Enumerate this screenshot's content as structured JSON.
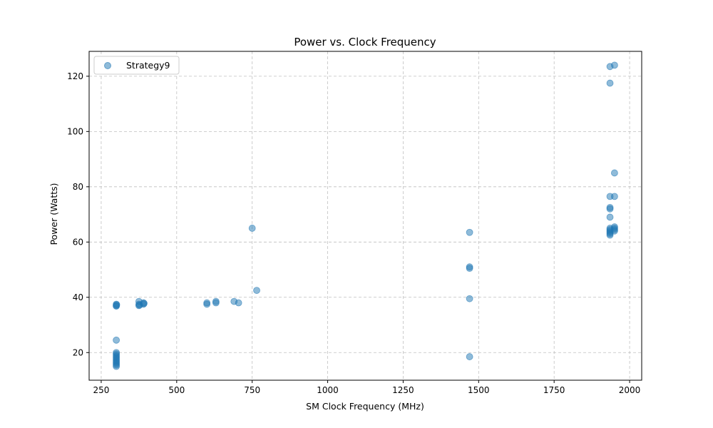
{
  "chart_data": {
    "type": "scatter",
    "title": "Power vs. Clock Frequency",
    "xlabel": "SM Clock Frequency (MHz)",
    "ylabel": "Power (Watts)",
    "xlim": [
      210,
      2040
    ],
    "ylim": [
      10,
      129
    ],
    "xticks": [
      250,
      500,
      750,
      1000,
      1250,
      1500,
      1750,
      2000
    ],
    "yticks": [
      20,
      40,
      60,
      80,
      100,
      120
    ],
    "grid": true,
    "legend_position": "top-left",
    "color": "#1f77b4",
    "series": [
      {
        "name": "Strategy9",
        "points": [
          [
            300,
            37.5
          ],
          [
            300,
            37.0
          ],
          [
            300,
            36.8
          ],
          [
            301,
            37.3
          ],
          [
            300,
            24.5
          ],
          [
            300,
            20.0
          ],
          [
            300,
            19.5
          ],
          [
            300,
            19.0
          ],
          [
            300,
            18.5
          ],
          [
            300,
            18.0
          ],
          [
            300,
            17.5
          ],
          [
            300,
            17.0
          ],
          [
            300,
            16.5
          ],
          [
            300,
            16.0
          ],
          [
            300,
            15.5
          ],
          [
            300,
            15.0
          ],
          [
            375,
            38.5
          ],
          [
            375,
            37.5
          ],
          [
            375,
            37.0
          ],
          [
            377,
            37.2
          ],
          [
            390,
            38.0
          ],
          [
            390,
            37.5
          ],
          [
            392,
            37.8
          ],
          [
            600,
            38.0
          ],
          [
            600,
            37.5
          ],
          [
            630,
            38.5
          ],
          [
            630,
            38.0
          ],
          [
            690,
            38.5
          ],
          [
            705,
            38.0
          ],
          [
            750,
            65.0
          ],
          [
            765,
            42.5
          ],
          [
            1470,
            63.5
          ],
          [
            1470,
            51.0
          ],
          [
            1470,
            50.5
          ],
          [
            1470,
            39.5
          ],
          [
            1470,
            18.5
          ],
          [
            1935,
            123.5
          ],
          [
            1950,
            124.0
          ],
          [
            1935,
            117.5
          ],
          [
            1950,
            85.0
          ],
          [
            1935,
            76.5
          ],
          [
            1950,
            76.5
          ],
          [
            1935,
            72.5
          ],
          [
            1935,
            72.0
          ],
          [
            1935,
            69.0
          ],
          [
            1935,
            65.0
          ],
          [
            1935,
            64.5
          ],
          [
            1935,
            64.0
          ],
          [
            1935,
            63.5
          ],
          [
            1935,
            63.0
          ],
          [
            1935,
            62.5
          ],
          [
            1950,
            65.5
          ],
          [
            1950,
            65.0
          ],
          [
            1950,
            64.5
          ],
          [
            1950,
            64.0
          ]
        ]
      }
    ]
  }
}
